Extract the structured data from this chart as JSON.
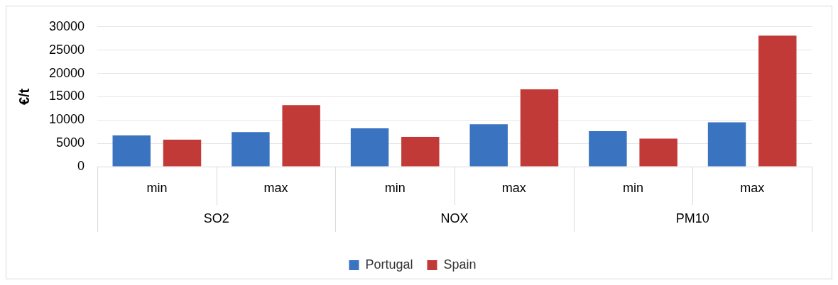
{
  "chart_data": {
    "type": "bar",
    "ylabel": "€/t",
    "categories": [
      "min",
      "max",
      "min",
      "max",
      "min",
      "max"
    ],
    "annotations": [
      "SO2",
      "NOX",
      "PM10"
    ],
    "series": [
      {
        "name": "Portugal",
        "color": "#3a74c0",
        "values": [
          6700,
          7400,
          8200,
          9100,
          7600,
          9500
        ]
      },
      {
        "name": "Spain",
        "color": "#c23a38",
        "values": [
          5800,
          13200,
          6400,
          16600,
          6000,
          28100
        ]
      }
    ],
    "ylim": [
      0,
      30000
    ],
    "yticks": [
      0,
      5000,
      10000,
      15000,
      20000,
      25000,
      30000
    ],
    "grid": "y",
    "legend": "bottom"
  }
}
